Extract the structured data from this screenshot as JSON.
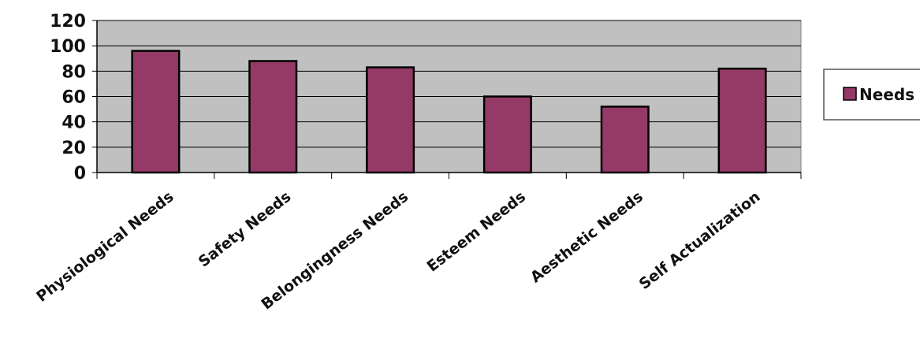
{
  "chart_data": {
    "type": "bar",
    "title": "",
    "xlabel": "",
    "ylabel": "",
    "categories": [
      "Physiological Needs",
      "Safety Needs",
      "Belongingness Needs",
      "Esteem Needs",
      "Aesthetic Needs",
      "Self Actualization"
    ],
    "series": [
      {
        "name": "Needs",
        "values": [
          96,
          88,
          83,
          60,
          52,
          82
        ],
        "color": "#953A67"
      }
    ],
    "ylim": [
      0,
      120
    ],
    "yticks": [
      0,
      20,
      40,
      60,
      80,
      100,
      120
    ],
    "grid": true,
    "legend": "right",
    "plot_background": "#C0C0C0"
  }
}
